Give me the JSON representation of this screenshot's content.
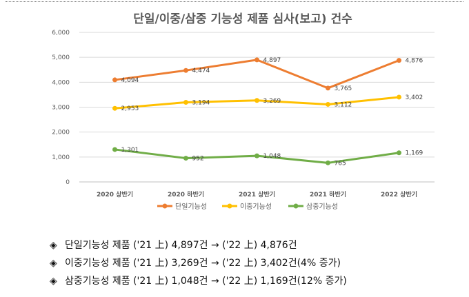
{
  "chart_data": {
    "type": "line",
    "title": "단일/이중/삼중 기능성 제품 심사(보고) 건수",
    "categories": [
      "2020 상반기",
      "2020 하반기",
      "2021 상반기",
      "2021 하반기",
      "2022 상반기"
    ],
    "ylim": [
      0,
      6000
    ],
    "yticks": [
      "0",
      "1,000",
      "2,000",
      "3,000",
      "4,000",
      "5,000",
      "6,000"
    ],
    "series": [
      {
        "name": "단일기능성",
        "color": "#ED7D31",
        "values": [
          4094,
          4474,
          4897,
          3765,
          4876
        ],
        "labels": [
          "4,094",
          "4,474",
          "4,897",
          "3,765",
          "4,876"
        ]
      },
      {
        "name": "이중기능성",
        "color": "#FFC000",
        "values": [
          2953,
          3194,
          3269,
          3112,
          3402
        ],
        "labels": [
          "2,953",
          "3,194",
          "3,269",
          "3,112",
          "3,402"
        ]
      },
      {
        "name": "삼중기능성",
        "color": "#70AD47",
        "values": [
          1301,
          952,
          1048,
          765,
          1169
        ],
        "labels": [
          "1,301",
          "952",
          "1,048",
          "765",
          "1,169"
        ]
      }
    ],
    "legend": "bottom"
  },
  "notes": {
    "bullet_symbol": "◈",
    "items": [
      "단일기능성 제품 ('21 上) 4,897건 → ('22 上) 4,876건",
      "이중기능성 제품 ('21 上) 3,269건 → ('22 上) 3,402건(4% 증가)",
      "삼중기능성 제품 ('21 上) 1,048건 → ('22 上) 1,169건(12% 증가)"
    ]
  }
}
